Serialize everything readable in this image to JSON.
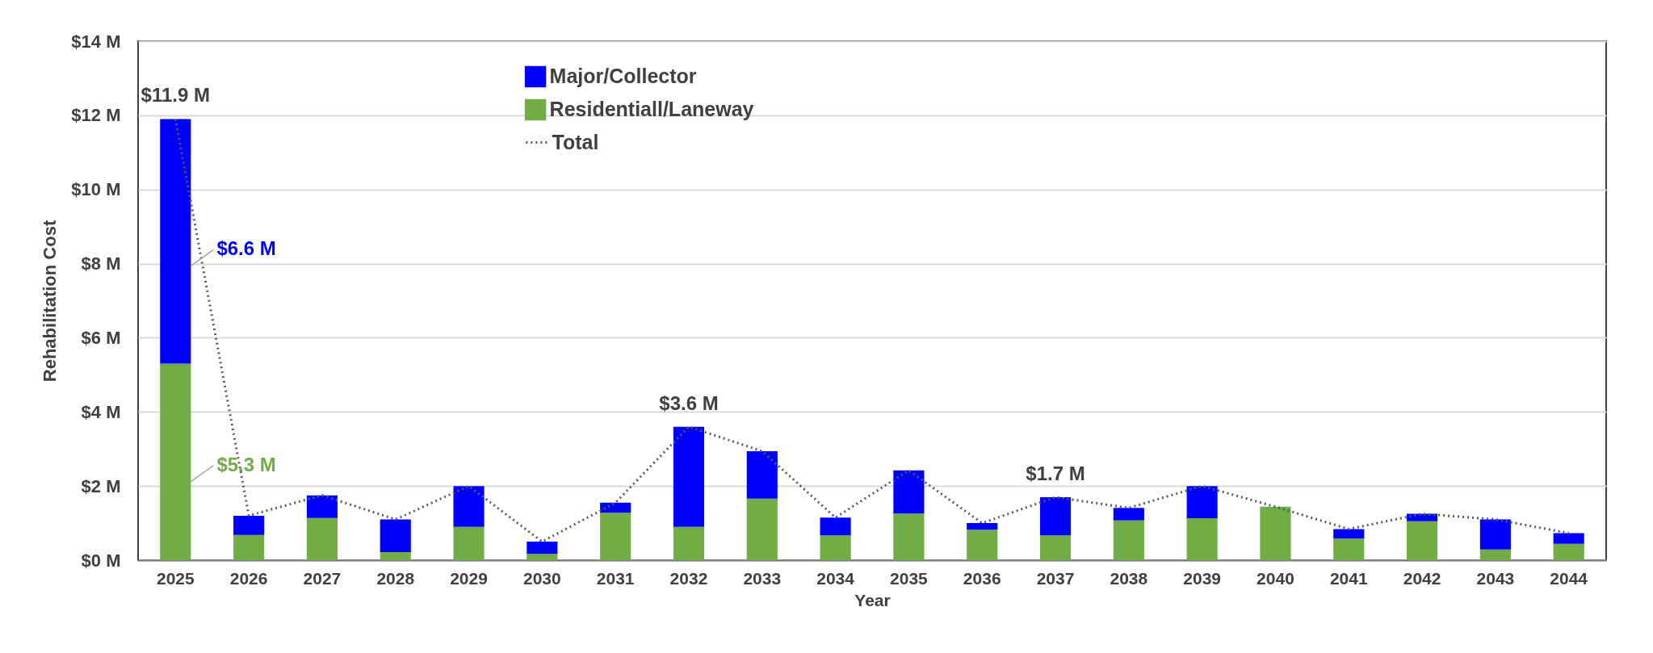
{
  "chart_data": {
    "type": "bar",
    "stacked": true,
    "xlabel": "Year",
    "ylabel": "Rehabilitation Cost",
    "categories": [
      "2025",
      "2026",
      "2027",
      "2028",
      "2029",
      "2030",
      "2031",
      "2032",
      "2033",
      "2034",
      "2035",
      "2036",
      "2037",
      "2038",
      "2039",
      "2040",
      "2041",
      "2042",
      "2043",
      "2044"
    ],
    "series": [
      {
        "name": "Residentiall/Laneway",
        "color": "#70ad47",
        "values": [
          5.3,
          0.68,
          1.14,
          0.22,
          0.9,
          0.17,
          1.28,
          0.9,
          1.66,
          0.67,
          1.26,
          0.82,
          0.67,
          1.07,
          1.13,
          1.44,
          0.58,
          1.05,
          0.29,
          0.44
        ]
      },
      {
        "name": "Major/Collector",
        "color": "#0000ff",
        "values": [
          6.6,
          0.52,
          0.61,
          0.88,
          1.1,
          0.33,
          0.27,
          2.7,
          1.28,
          0.48,
          1.16,
          0.18,
          1.03,
          0.34,
          0.87,
          0,
          0.26,
          0.2,
          0.81,
          0.29
        ]
      },
      {
        "name": "Total",
        "type": "line",
        "color": "#595959",
        "line_style": "dotted",
        "marker": "none",
        "values": [
          11.9,
          1.2,
          1.75,
          1.1,
          2.0,
          0.5,
          1.55,
          3.6,
          2.94,
          1.15,
          2.42,
          1.0,
          1.7,
          1.41,
          2.0,
          1.44,
          0.84,
          1.25,
          1.1,
          0.73
        ]
      }
    ],
    "ylim": [
      0,
      14
    ],
    "yticks": [
      {
        "value": 0,
        "label": "$0 M"
      },
      {
        "value": 2,
        "label": "$2 M"
      },
      {
        "value": 4,
        "label": "$4 M"
      },
      {
        "value": 6,
        "label": "$6 M"
      },
      {
        "value": 8,
        "label": "$8 M"
      },
      {
        "value": 10,
        "label": "$10 M"
      },
      {
        "value": 12,
        "label": "$12 M"
      },
      {
        "value": 14,
        "label": "$14 M"
      }
    ],
    "grid": "y",
    "legend": "top",
    "annotations": [
      {
        "text": "$11.9 M",
        "x": "2025",
        "y": 11.9
      },
      "$6.6 M",
      "$5.3 M",
      {
        "text": "$3.6 M",
        "x": "2032",
        "y": 3.6
      },
      {
        "text": "$1.7 M",
        "x": "2037",
        "y": 1.7
      }
    ]
  }
}
